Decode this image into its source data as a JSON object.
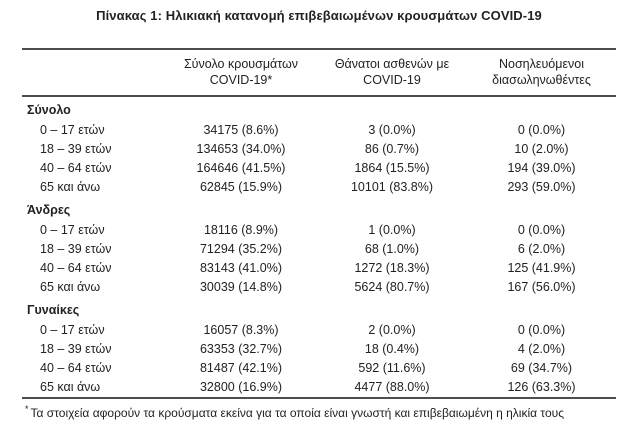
{
  "title": "Πίνακας 1: Ηλικιακή κατανομή επιβεβαιωμένων κρουσμάτων COVID-19",
  "colors": {
    "text": "#212226",
    "rule": "#4d4d4d",
    "background": "#ffffff"
  },
  "table": {
    "col_headers": [
      {
        "line1": "Σύνολο κρουσμάτων",
        "line2": "COVID-19*"
      },
      {
        "line1": "Θάνατοι ασθενών με",
        "line2": "COVID-19"
      },
      {
        "line1": "Νοσηλευόμενοι",
        "line2": "διασωληνωθέντες"
      }
    ],
    "sections": [
      {
        "label": "Σύνολο",
        "rows": [
          {
            "label": "0 – 17 ετών",
            "cases": "34175 (8.6%)",
            "deaths": "3 (0.0%)",
            "intubated": "0 (0.0%)"
          },
          {
            "label": "18 – 39 ετών",
            "cases": "134653 (34.0%)",
            "deaths": "86 (0.7%)",
            "intubated": "10 (2.0%)"
          },
          {
            "label": "40 – 64 ετών",
            "cases": "164646 (41.5%)",
            "deaths": "1864 (15.5%)",
            "intubated": "194 (39.0%)"
          },
          {
            "label": "65 και άνω",
            "cases": "62845 (15.9%)",
            "deaths": "10101 (83.8%)",
            "intubated": "293 (59.0%)"
          }
        ]
      },
      {
        "label": "Άνδρες",
        "rows": [
          {
            "label": "0 – 17 ετών",
            "cases": "18116 (8.9%)",
            "deaths": "1 (0.0%)",
            "intubated": "0 (0.0%)"
          },
          {
            "label": "18 – 39 ετών",
            "cases": "71294 (35.2%)",
            "deaths": "68 (1.0%)",
            "intubated": "6 (2.0%)"
          },
          {
            "label": "40 – 64 ετών",
            "cases": "83143 (41.0%)",
            "deaths": "1272 (18.3%)",
            "intubated": "125 (41.9%)"
          },
          {
            "label": "65 και άνω",
            "cases": "30039 (14.8%)",
            "deaths": "5624 (80.7%)",
            "intubated": "167 (56.0%)"
          }
        ]
      },
      {
        "label": "Γυναίκες",
        "rows": [
          {
            "label": "0 – 17 ετών",
            "cases": "16057 (8.3%)",
            "deaths": "2 (0.0%)",
            "intubated": "0 (0.0%)"
          },
          {
            "label": "18 – 39 ετών",
            "cases": "63353 (32.7%)",
            "deaths": "18 (0.4%)",
            "intubated": "4 (2.0%)"
          },
          {
            "label": "40 – 64 ετών",
            "cases": "81487 (42.1%)",
            "deaths": "592 (11.6%)",
            "intubated": "69 (34.7%)"
          },
          {
            "label": "65 και άνω",
            "cases": "32800 (16.9%)",
            "deaths": "4477 (88.0%)",
            "intubated": "126 (63.3%)"
          }
        ]
      }
    ]
  },
  "footnote": {
    "marker": "*",
    "text": "Τα στοιχεία αφορούν τα κρούσματα εκείνα για τα οποία είναι γνωστή και επιβεβαιωμένη η ηλικία τους"
  }
}
